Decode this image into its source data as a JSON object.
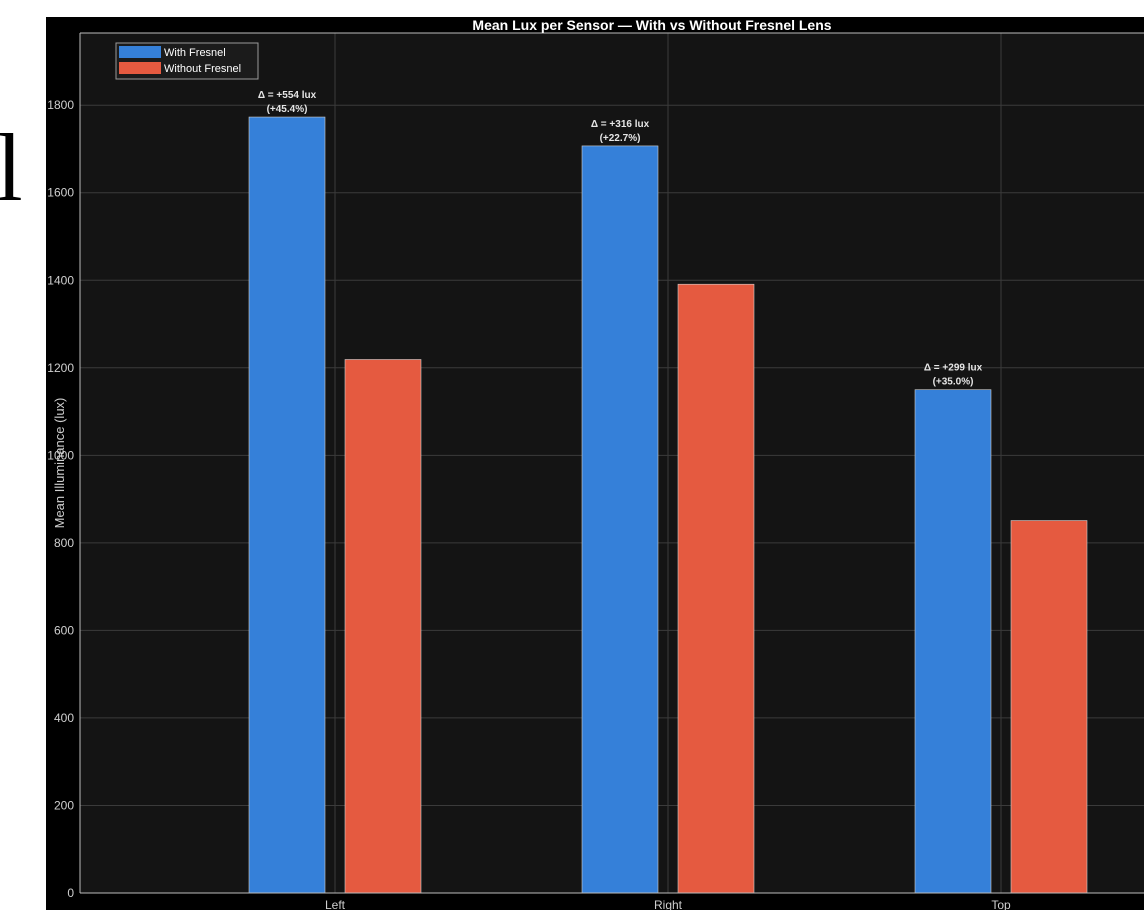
{
  "page": {
    "fragment_text": "l"
  },
  "chart_data": {
    "type": "bar",
    "title": "Mean Lux per Sensor — With vs Without Fresnel Lens",
    "xlabel": "",
    "ylabel": "Mean Illuminance (lux)",
    "categories": [
      "Left",
      "Right",
      "Top"
    ],
    "series": [
      {
        "name": "With Fresnel",
        "color": "#3580d9",
        "values": [
          1773,
          1707,
          1150
        ]
      },
      {
        "name": "Without Fresnel",
        "color": "#e55a40",
        "values": [
          1219,
          1391,
          851
        ]
      }
    ],
    "annotations": [
      {
        "category": "Left",
        "line1": "Δ = +554 lux",
        "line2": "(+45.4%)"
      },
      {
        "category": "Right",
        "line1": "Δ = +316 lux",
        "line2": "(+22.7%)"
      },
      {
        "category": "Top",
        "line1": "Δ = +299 lux",
        "line2": "(+35.0%)"
      }
    ],
    "ylim": [
      0,
      1965
    ],
    "yticks": [
      0,
      200,
      400,
      600,
      800,
      1000,
      1200,
      1400,
      1600,
      1800
    ],
    "grid": true,
    "legend_position": "top-left",
    "background": "#141414",
    "axes_color": "#bbbbbb",
    "grid_color": "#3b3b3b",
    "text_color": "#ffffff",
    "tick_label_color": "#cfcfcf"
  }
}
